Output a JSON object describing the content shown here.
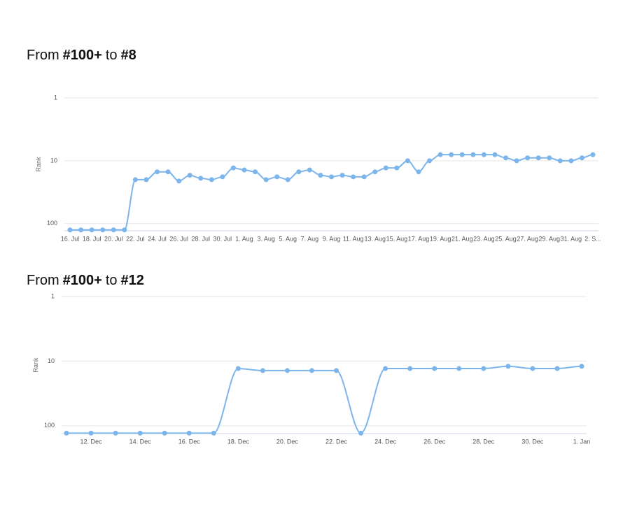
{
  "chart_data": [
    {
      "type": "line",
      "title_parts": [
        "From",
        "#100+",
        "to",
        "#8"
      ],
      "y_label": "Rank",
      "y_scale": "log",
      "y_reversed": true,
      "grid": true,
      "markers": true,
      "color": "#7cb5ec",
      "ylim": [
        1,
        130
      ],
      "yticks": [
        1,
        10,
        100
      ],
      "categories": [
        "16. Jul",
        null,
        "18. Jul",
        null,
        "20. Jul",
        null,
        "22. Jul",
        null,
        "24. Jul",
        null,
        "26. Jul",
        null,
        "28. Jul",
        null,
        "30. Jul",
        null,
        "1. Aug",
        null,
        "3. Aug",
        null,
        "5. Aug",
        null,
        "7. Aug",
        null,
        "9. Aug",
        null,
        "11. Aug",
        null,
        "13. Aug",
        null,
        "15. Aug",
        null,
        "17. Aug",
        null,
        "19. Aug",
        null,
        "21. Aug",
        null,
        "23. Aug",
        null,
        "25. Aug",
        null,
        "27. Aug",
        null,
        "29. Aug",
        null,
        "31. Aug",
        null,
        "2. S..."
      ],
      "values": [
        126,
        126,
        126,
        126,
        126,
        126,
        20,
        20,
        15,
        15,
        21,
        17,
        19,
        20,
        18,
        13,
        14,
        15,
        20,
        18,
        20,
        15,
        14,
        17,
        18,
        17,
        18,
        18,
        15,
        13,
        13,
        10,
        15,
        10,
        8,
        8,
        8,
        8,
        8,
        8,
        9,
        10,
        9,
        9,
        9,
        10,
        10,
        9,
        8
      ]
    },
    {
      "type": "line",
      "title_parts": [
        "From",
        "#100+",
        "to",
        "#12"
      ],
      "y_label": "Rank",
      "y_scale": "log",
      "y_reversed": true,
      "grid": true,
      "markers": true,
      "color": "#7cb5ec",
      "ylim": [
        1,
        132
      ],
      "yticks": [
        1,
        10,
        100
      ],
      "categories": [
        null,
        "12. Dec",
        null,
        "14. Dec",
        null,
        "16. Dec",
        null,
        "18. Dec",
        null,
        "20. Dec",
        null,
        "22. Dec",
        null,
        "24. Dec",
        null,
        "26. Dec",
        null,
        "28. Dec",
        null,
        "30. Dec",
        null,
        "1. Jan"
      ],
      "values": [
        130,
        130,
        130,
        130,
        130,
        130,
        130,
        13,
        14,
        14,
        14,
        14,
        130,
        13,
        13,
        13,
        13,
        13,
        12,
        13,
        13,
        12
      ]
    }
  ]
}
